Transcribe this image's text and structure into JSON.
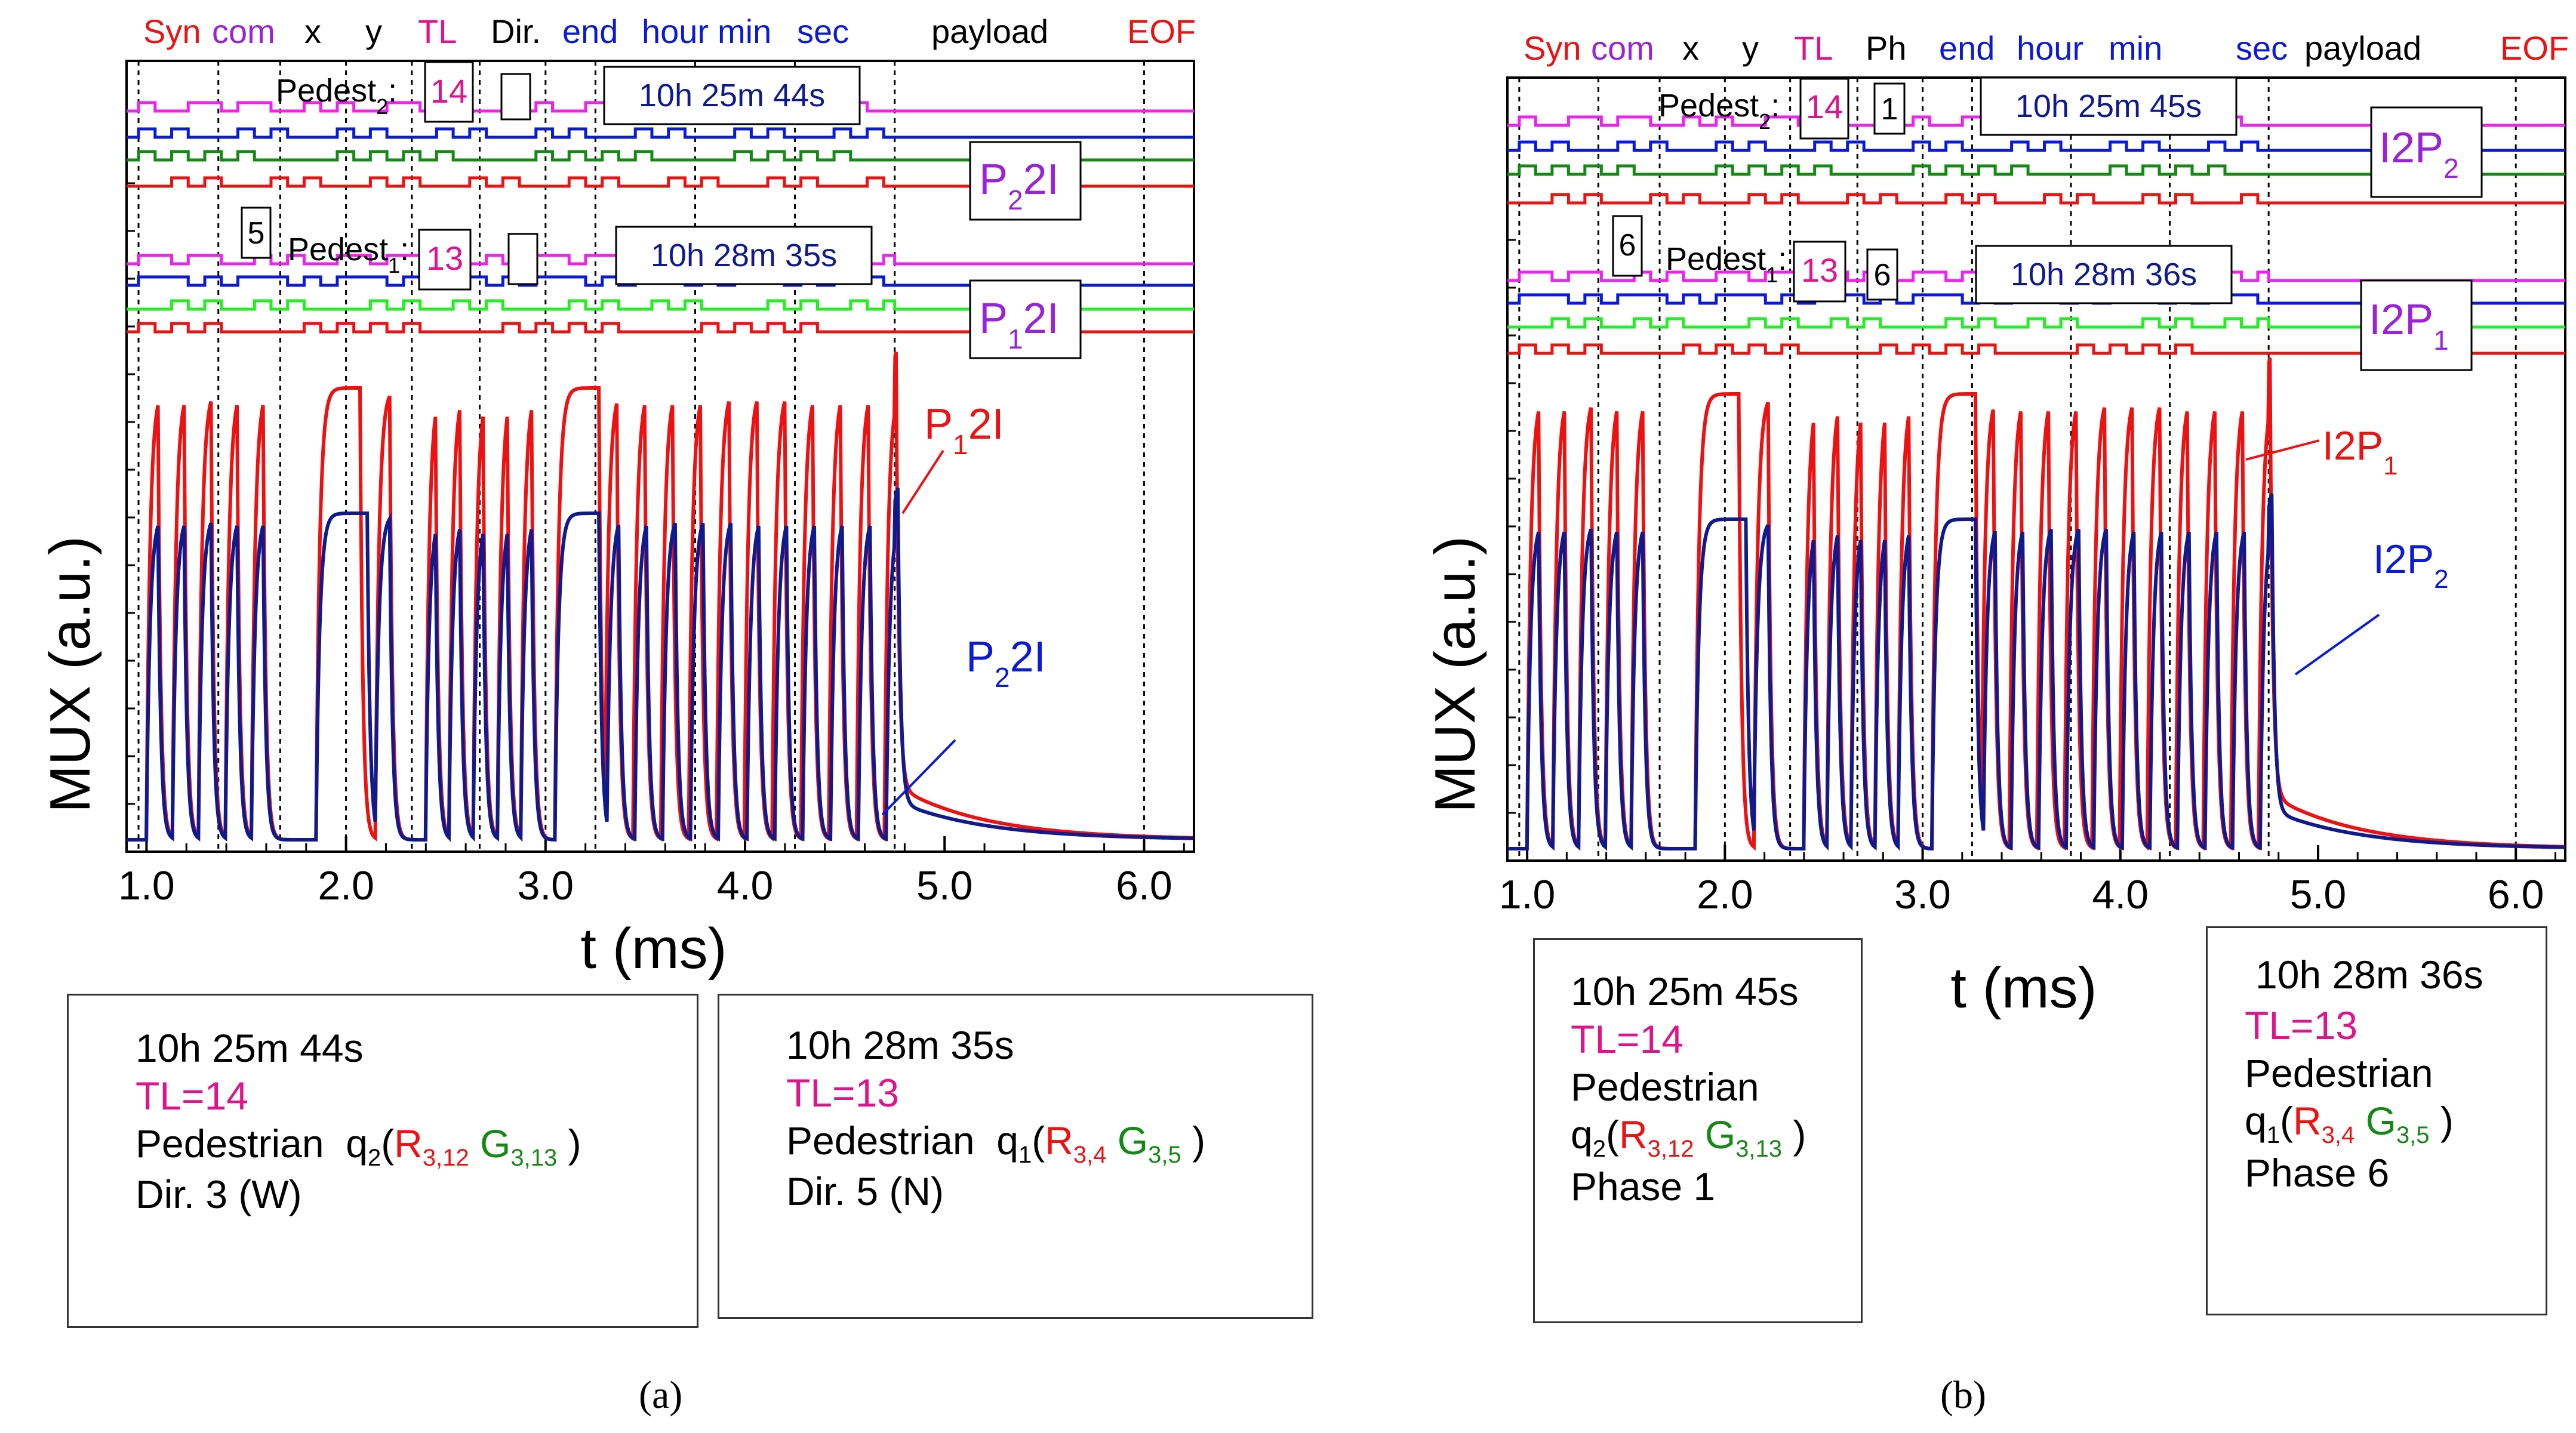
{
  "colors": {
    "red": "#ee1111",
    "magenta": "#ee22ee",
    "blue": "#0a1ad8",
    "green": "#148a14",
    "lime": "#22ee22",
    "darkblue": "#101a8c",
    "purple": "#9a22d8",
    "pink": "#e0138c"
  },
  "chart_data": [
    {
      "type": "line",
      "panel": "a",
      "caption": "(a)",
      "xlabel": "t (ms)",
      "ylabel": "MUX (a.u.)",
      "xlim": [
        0.9,
        6.25
      ],
      "xticks": [
        "1.0",
        "2.0",
        "3.0",
        "4.0",
        "5.0",
        "6.0"
      ],
      "frame_fields": [
        {
          "label": "Syn",
          "color": "red"
        },
        {
          "label": "com",
          "color": "purple"
        },
        {
          "label": "x",
          "color": "black"
        },
        {
          "label": "y",
          "color": "black"
        },
        {
          "label": "TL",
          "color": "pink"
        },
        {
          "label": "Dir.",
          "color": "black"
        },
        {
          "label": "end",
          "color": "blue"
        },
        {
          "label": "hour",
          "color": "blue"
        },
        {
          "label": "min",
          "color": "blue"
        },
        {
          "label": "sec",
          "color": "blue"
        },
        {
          "label": "payload",
          "color": "black"
        },
        {
          "label": "EOF",
          "color": "red"
        }
      ],
      "boundaries_ms": [
        0.96,
        1.36,
        1.67,
        2.0,
        2.33,
        2.67,
        3.0,
        3.25,
        3.75,
        4.25,
        4.75,
        6.0
      ],
      "traces": [
        {
          "name": "P₁2I",
          "color": "red",
          "field_values": {
            "TL": "13",
            "Dir.": "5",
            "time": "10h 28m 35s"
          },
          "pedestrian_label": "Pedest₁",
          "extra": "5"
        },
        {
          "name": "P₂2I",
          "color": "darkblue",
          "field_values": {
            "TL": "14",
            "Dir.": "3",
            "time": "10h 25m 44s"
          },
          "pedestrian_label": "Pedest₂"
        }
      ],
      "info_boxes": [
        {
          "time": "10h 25m 44s",
          "tl": "TL=14",
          "ped": "Pedestrian",
          "q": "q",
          "qsub": "2",
          "r": "R",
          "rsub": "3,12",
          "g": "G",
          "gsub": "3,13",
          "extra": "Dir. 3 (W)"
        },
        {
          "time": "10h 28m 35s",
          "tl": "TL=13",
          "ped": "Pedestrian",
          "q": "q",
          "qsub": "1",
          "r": "R",
          "rsub": "3,4",
          "g": "G",
          "gsub": "3,5",
          "extra": "Dir. 5 (N)"
        }
      ]
    },
    {
      "type": "line",
      "panel": "b",
      "caption": "(b)",
      "xlabel": "t (ms)",
      "ylabel": "MUX (a.u.)",
      "xlim": [
        0.9,
        6.25
      ],
      "xticks": [
        "1.0",
        "2.0",
        "3.0",
        "4.0",
        "5.0",
        "6.0"
      ],
      "frame_fields": [
        {
          "label": "Syn",
          "color": "red"
        },
        {
          "label": "com",
          "color": "purple"
        },
        {
          "label": "x",
          "color": "black"
        },
        {
          "label": "y",
          "color": "black"
        },
        {
          "label": "TL",
          "color": "pink"
        },
        {
          "label": "Ph",
          "color": "black"
        },
        {
          "label": "end",
          "color": "blue"
        },
        {
          "label": "hour",
          "color": "blue"
        },
        {
          "label": "min",
          "color": "blue"
        },
        {
          "label": "sec",
          "color": "blue"
        },
        {
          "label": "payload",
          "color": "black"
        },
        {
          "label": "EOF",
          "color": "red"
        }
      ],
      "boundaries_ms": [
        0.96,
        1.36,
        1.67,
        2.0,
        2.33,
        2.67,
        3.0,
        3.25,
        3.75,
        4.25,
        4.75,
        6.0
      ],
      "traces": [
        {
          "name": "I2P₁",
          "color": "red",
          "field_values": {
            "TL": "13",
            "Ph": "6",
            "time": "10h 28m 36s"
          },
          "pedestrian_label": "Pedest₁",
          "extra": "6"
        },
        {
          "name": "I2P₂",
          "color": "darkblue",
          "field_values": {
            "TL": "14",
            "Ph": "1",
            "time": "10h 25m 45s"
          },
          "pedestrian_label": "Pedest₂"
        }
      ],
      "info_boxes": [
        {
          "time": "10h 25m 45s",
          "tl": "TL=14",
          "ped": "Pedestrian",
          "q": "q",
          "qsub": "2",
          "r": "R",
          "rsub": "3,12",
          "g": "G",
          "gsub": "3,13",
          "extra": "Phase 1"
        },
        {
          "time": "10h 28m 36s",
          "tl": "TL=13",
          "ped": "Pedestrian",
          "q": "q",
          "qsub": "1",
          "r": "R",
          "rsub": "3,4",
          "g": "G",
          "gsub": "3,5",
          "extra": "Phase 6"
        }
      ]
    }
  ]
}
